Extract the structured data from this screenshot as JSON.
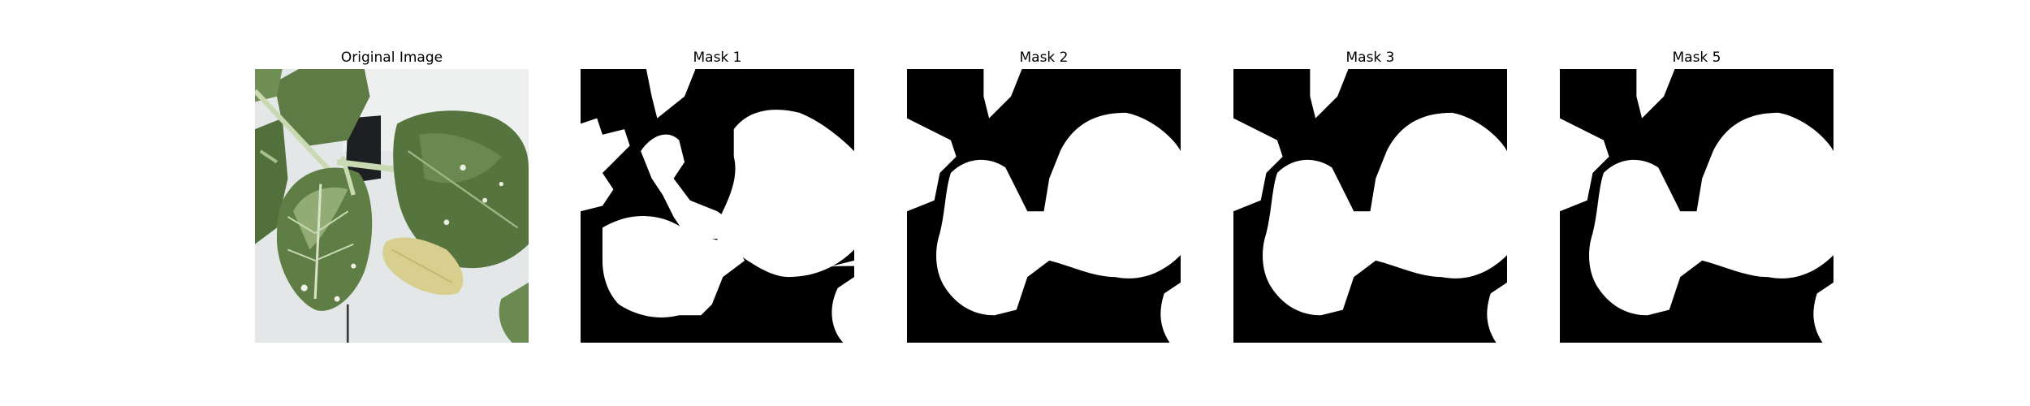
{
  "panels": [
    {
      "title": "Original Image"
    },
    {
      "title": "Mask 1"
    },
    {
      "title": "Mask 2"
    },
    {
      "title": "Mask 3"
    },
    {
      "title": "Mask 5"
    }
  ],
  "colors": {
    "background": "#ffffff",
    "mask_background": "#000000",
    "mask_foreground": "#ffffff",
    "wall": "#e3e7e8",
    "leaf_dark": "#52703c",
    "leaf_mid": "#6f8f55",
    "leaf_light": "#b9cc9c",
    "stem": "#c9d9b1",
    "yellow_leaf": "#d8cf8e",
    "pot": "#1d1f22"
  }
}
